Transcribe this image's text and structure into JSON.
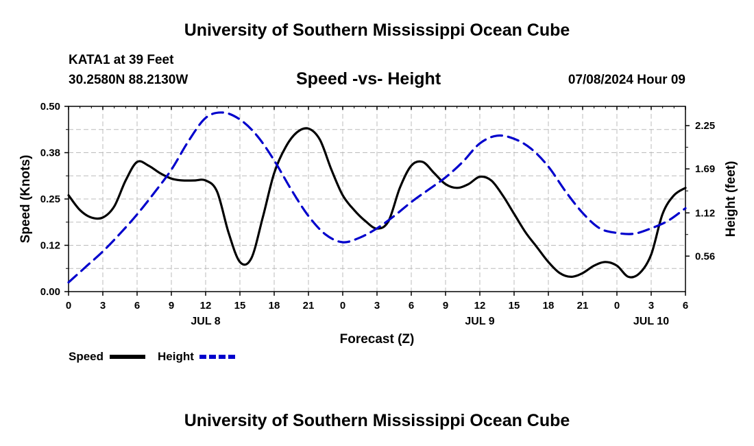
{
  "header": {
    "title": "University of Southern Mississippi Ocean Cube",
    "station": "KATA1 at 39 Feet",
    "coordinates": "30.2580N  88.2130W",
    "subtitle": "Speed -vs- Height",
    "datestamp": "07/08/2024 Hour 09"
  },
  "footer": {
    "title": "University of Southern Mississippi Ocean Cube"
  },
  "colors": {
    "speed": "#000000",
    "height": "#0000cc",
    "grid": "#bbbbbb"
  },
  "chart_data": {
    "type": "line",
    "title": "Speed -vs- Height",
    "xlabel": "Forecast (Z)",
    "ylabel": "Speed (Knots)",
    "y2label": "Height (feet)",
    "x_unit": "hours since Jul 8 00Z",
    "xlim": [
      0,
      54
    ],
    "ylim": [
      0,
      0.5
    ],
    "y2lim": [
      0.1,
      2.5
    ],
    "x_ticks": [
      0,
      3,
      6,
      9,
      12,
      15,
      18,
      21,
      24,
      27,
      30,
      33,
      36,
      39,
      42,
      45,
      48,
      51,
      54
    ],
    "x_tick_labels": [
      "0",
      "3",
      "6",
      "9",
      "12",
      "15",
      "18",
      "21",
      "0",
      "3",
      "6",
      "9",
      "12",
      "15",
      "18",
      "21",
      "0",
      "3",
      "6"
    ],
    "date_labels": [
      {
        "x": 12,
        "label": "JUL 8"
      },
      {
        "x": 36,
        "label": "JUL 9"
      },
      {
        "x": 51,
        "label": "JUL 10"
      }
    ],
    "y_ticks": [
      0.0,
      0.125,
      0.25,
      0.375,
      0.5
    ],
    "y_tick_labels": [
      "0.00",
      "0.12",
      "0.25",
      "0.38",
      "0.50"
    ],
    "y2_ticks": [
      0.56,
      1.12,
      1.69,
      2.25
    ],
    "y2_tick_labels": [
      "0.56",
      "1.12",
      "1.69",
      "2.25"
    ],
    "series": [
      {
        "name": "Speed",
        "axis": "left",
        "style": "solid",
        "x": [
          0,
          1,
          2,
          3,
          4,
          5,
          6,
          7,
          8,
          9,
          10,
          11,
          12,
          13,
          14,
          15,
          16,
          17,
          18,
          19,
          20,
          21,
          22,
          23,
          24,
          25,
          26,
          27,
          28,
          29,
          30,
          31,
          32,
          33,
          34,
          35,
          36,
          37,
          38,
          39,
          40,
          41,
          42,
          43,
          44,
          45,
          46,
          47,
          48,
          49,
          50,
          51,
          52,
          53,
          54
        ],
        "values": [
          0.26,
          0.22,
          0.2,
          0.2,
          0.23,
          0.3,
          0.35,
          0.34,
          0.32,
          0.305,
          0.3,
          0.3,
          0.3,
          0.27,
          0.16,
          0.08,
          0.09,
          0.2,
          0.32,
          0.39,
          0.43,
          0.44,
          0.41,
          0.33,
          0.26,
          0.22,
          0.19,
          0.17,
          0.19,
          0.28,
          0.34,
          0.35,
          0.32,
          0.29,
          0.28,
          0.29,
          0.31,
          0.3,
          0.26,
          0.21,
          0.16,
          0.12,
          0.08,
          0.05,
          0.04,
          0.05,
          0.07,
          0.08,
          0.07,
          0.04,
          0.05,
          0.1,
          0.21,
          0.26,
          0.28
        ]
      },
      {
        "name": "Height",
        "axis": "right",
        "style": "dashed",
        "x": [
          0,
          1.5,
          3,
          4.5,
          6,
          7.5,
          9,
          10.5,
          12,
          13.5,
          15,
          16.5,
          18,
          19.5,
          21,
          22.5,
          24,
          25.5,
          27,
          28.5,
          30,
          31.5,
          33,
          34.5,
          36,
          37.5,
          39,
          40.5,
          42,
          43.5,
          45,
          46.5,
          48,
          49.5,
          51,
          52.5,
          54
        ],
        "values": [
          0.22,
          0.42,
          0.62,
          0.85,
          1.1,
          1.38,
          1.68,
          2.05,
          2.35,
          2.42,
          2.33,
          2.12,
          1.8,
          1.42,
          1.08,
          0.84,
          0.74,
          0.8,
          0.92,
          1.08,
          1.26,
          1.42,
          1.58,
          1.78,
          2.02,
          2.12,
          2.08,
          1.95,
          1.72,
          1.4,
          1.12,
          0.92,
          0.86,
          0.85,
          0.92,
          1.02,
          1.18
        ]
      }
    ],
    "legend": {
      "position": "bottom-left",
      "entries": [
        "Speed",
        "Height"
      ]
    }
  }
}
